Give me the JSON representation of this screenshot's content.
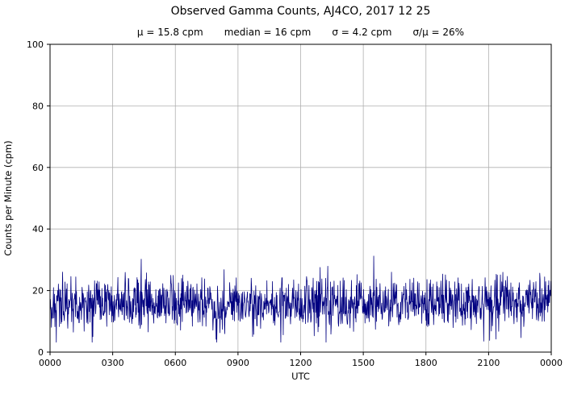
{
  "chart_data": {
    "type": "line",
    "title": "Observed Gamma Counts, AJ4CO, 2017 12 25",
    "subtitle_parts": [
      "μ = 15.8 cpm",
      "median = 16 cpm",
      "σ = 4.2 cpm",
      "σ/μ = 26%"
    ],
    "stats": {
      "mean_cpm": 15.8,
      "median_cpm": 16,
      "sigma_cpm": 4.2,
      "sigma_over_mu_percent": 26
    },
    "xlabel": "UTC",
    "ylabel": "Counts per Minute (cpm)",
    "ylim": [
      0,
      100
    ],
    "yticks": [
      0,
      20,
      40,
      60,
      80,
      100
    ],
    "x_range_minutes": [
      0,
      1440
    ],
    "xticks": [
      {
        "minute": 0,
        "label": "0000"
      },
      {
        "minute": 180,
        "label": "0300"
      },
      {
        "minute": 360,
        "label": "0600"
      },
      {
        "minute": 540,
        "label": "0900"
      },
      {
        "minute": 720,
        "label": "1200"
      },
      {
        "minute": 900,
        "label": "1500"
      },
      {
        "minute": 1080,
        "label": "1800"
      },
      {
        "minute": 1260,
        "label": "2100"
      },
      {
        "minute": 1440,
        "label": "0000"
      }
    ],
    "grid": true,
    "legend": "none",
    "colors": {
      "line": "#000080",
      "grid": "#b0b0b0",
      "axis": "#000000",
      "background": "#ffffff"
    },
    "series": [
      {
        "name": "observed-gamma-counts",
        "color": "#000080",
        "n_points": 1441,
        "seed": 42,
        "noise_mean": 15.8,
        "noise_sigma": 4.2,
        "clip": [
          3.2,
          31.5
        ],
        "notable_points": [
          {
            "minute": 930,
            "cpm": 31.2
          },
          {
            "minute": 262,
            "cpm": 30.2
          },
          {
            "minute": 1263,
            "cpm": 3.8
          },
          {
            "minute": 123,
            "cpm": 5.0
          }
        ]
      }
    ]
  }
}
